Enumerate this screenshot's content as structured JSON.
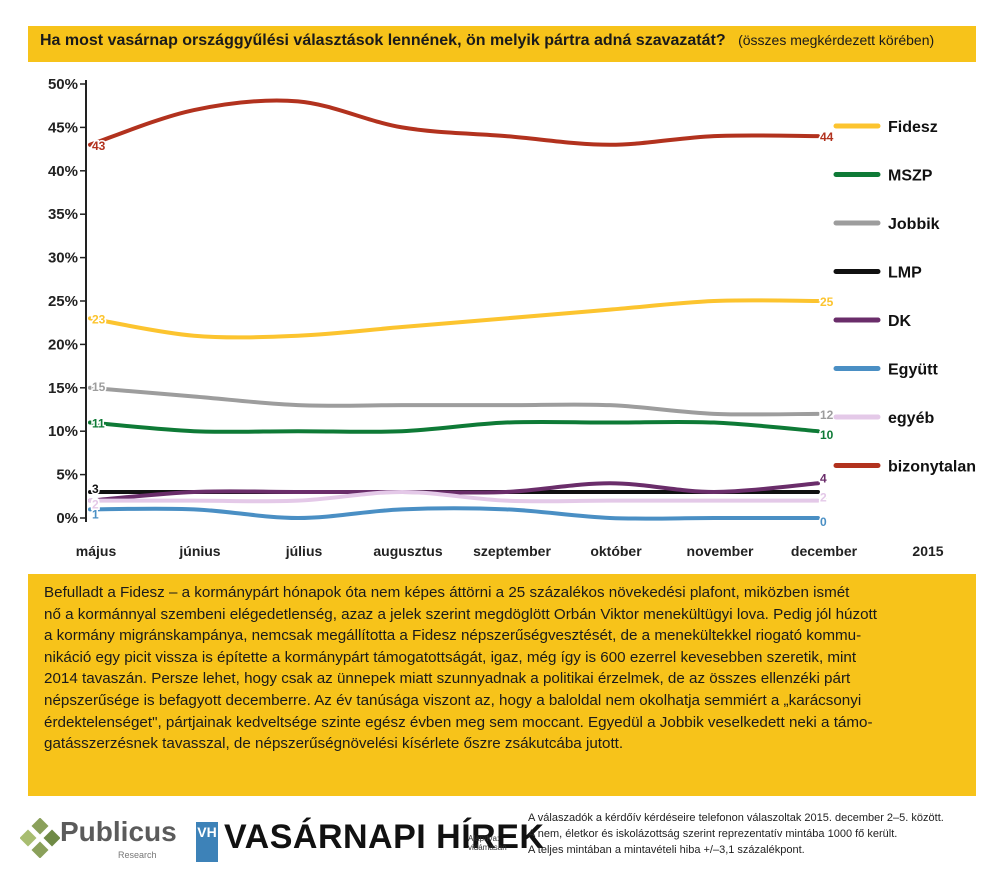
{
  "header": {
    "question": "Ha most vasárnap országgyűlési választások lennének, ön melyik pártra adná szavazatát?",
    "subtitle": "(összes megkérdezett körében)"
  },
  "colors": {
    "accent_yellow": "#f7c31a",
    "Fidesz": "#fcc42f",
    "MSZP": "#0e7a36",
    "Jobbik": "#9d9d9d",
    "LMP": "#111111",
    "DK": "#6a2d6a",
    "Együtt": "#4a8fc4",
    "egyéb": "#e4c9e8",
    "bizonytalan": "#b2321e"
  },
  "chart_data": {
    "type": "line",
    "categories": [
      "május",
      "június",
      "július",
      "augusztus",
      "szeptember",
      "október",
      "november",
      "december"
    ],
    "year_label": "2015",
    "y_ticks": [
      "50%",
      "45%",
      "40%",
      "35%",
      "30%",
      "25%",
      "20%",
      "15%",
      "10%",
      "5%",
      "0%"
    ],
    "ylim": [
      0,
      50
    ],
    "legend_position": "right",
    "series": [
      {
        "name": "Fidesz",
        "values": [
          23,
          21,
          21,
          22,
          23,
          24,
          25,
          25
        ],
        "start_label": "23",
        "end_label": "25"
      },
      {
        "name": "MSZP",
        "values": [
          11,
          10,
          10,
          10,
          11,
          11,
          11,
          10
        ],
        "start_label": "11",
        "end_label": "10"
      },
      {
        "name": "Jobbik",
        "values": [
          15,
          14,
          13,
          13,
          13,
          13,
          12,
          12
        ],
        "start_label": "15",
        "end_label": "12"
      },
      {
        "name": "LMP",
        "values": [
          3,
          3,
          3,
          3,
          3,
          3,
          3,
          3
        ],
        "start_label": "3",
        "end_label": "3"
      },
      {
        "name": "DK",
        "values": [
          2,
          3,
          3,
          3,
          3,
          4,
          3,
          4
        ],
        "start_label": "2",
        "end_label": "4"
      },
      {
        "name": "Együtt",
        "values": [
          1,
          1,
          0,
          1,
          1,
          0,
          0,
          0
        ],
        "start_label": "1",
        "end_label": "0"
      },
      {
        "name": "egyéb",
        "values": [
          2,
          2,
          2,
          3,
          2,
          2,
          2,
          2
        ],
        "start_label": "2",
        "end_label": "2"
      },
      {
        "name": "bizonytalan",
        "values": [
          43,
          47,
          48,
          45,
          44,
          43,
          44,
          44
        ],
        "start_label": "43",
        "end_label": "44"
      }
    ]
  },
  "body_text": [
    "Befulladt a Fidesz – a kormánypárt hónapok óta nem képes áttörni a 25 százalékos növekedési plafont, miközben ismét",
    "nő a kormánnyal szembeni elégedetlenség, azaz a jelek szerint megdöglött Orbán Viktor menekültügyi lova. Pedig jól húzott",
    "a kormány migránskampánya, nemcsak megállította a Fidesz népszerűségvesztését, de a menekültekkel riogató kommu-",
    "nikáció egy picit vissza is építette a kormánypárt támogatottságát, igaz, még így is 600 ezerrel kevesebben szeretik, mint",
    "2014 tavaszán. Persze lehet, hogy csak az ünnepek miatt szunnyadnak a politikai érzelmek, de az összes ellenzéki párt",
    "népszerűsége is befagyott decemberre. Az év tanúsága viszont az, hogy a baloldal nem okolhatja semmiért a „karácsonyi",
    "érdektelenséget\", pártjainak kedveltsége szinte egész évben meg sem moccant. Egyedül a Jobbik veselkedett neki a támo-",
    "gatásszerzésnek tavasszal, de népszerűségnövelési kísérlete őszre zsákutcába jutott."
  ],
  "footer": {
    "publicus": "Publicus",
    "publicus_sub": "Research",
    "vh_logo": "VH",
    "vh_name": "VASÁRNAPI HÍREK",
    "vh_sub": "Alapítva: vidámasan",
    "notes": [
      "A válaszadók a kérdőív kérdéseire telefonon válaszoltak 2015. december 2–5. között.",
      "A nem, életkor és iskolázottság szerint reprezentatív mintába 1000 fő került.",
      "A teljes mintában a mintavételi hiba +/–3,1 százalékpont."
    ]
  }
}
